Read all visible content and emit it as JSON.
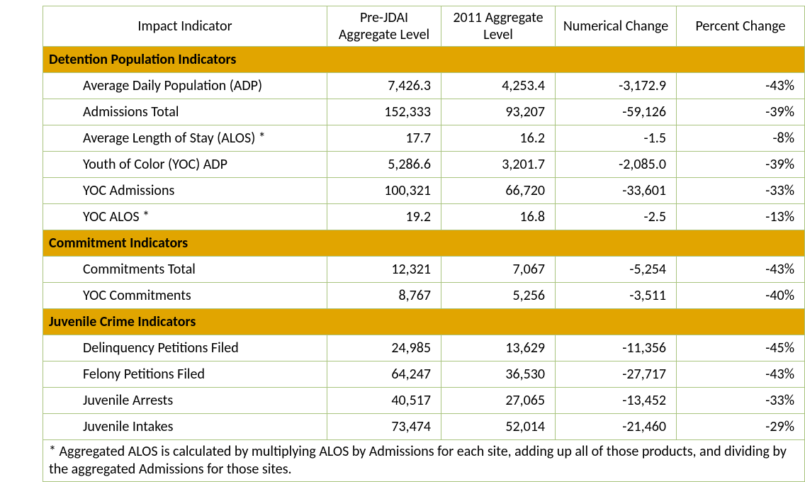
{
  "columns": {
    "impact": "Impact Indicator",
    "pre": "Pre-JDAI Aggregate Level",
    "y2011": "2011 Aggregate Level",
    "numchg": "Numerical Change",
    "pctchg": "Percent Change"
  },
  "sections": [
    {
      "title": "Detention Population Indicators",
      "rows": [
        {
          "label": "Average Daily Population (ADP)",
          "pre": "7,426.3",
          "y2011": "4,253.4",
          "numchg": "-3,172.9",
          "pctchg": "-43%"
        },
        {
          "label": "Admissions Total",
          "pre": "152,333",
          "y2011": "93,207",
          "numchg": "-59,126",
          "pctchg": "-39%"
        },
        {
          "label": "Average Length of Stay (ALOS) *",
          "pre": "17.7",
          "y2011": "16.2",
          "numchg": "-1.5",
          "pctchg": "-8%"
        },
        {
          "label": "Youth of Color (YOC) ADP",
          "pre": "5,286.6",
          "y2011": "3,201.7",
          "numchg": "-2,085.0",
          "pctchg": "-39%"
        },
        {
          "label": "YOC Admissions",
          "pre": "100,321",
          "y2011": "66,720",
          "numchg": "-33,601",
          "pctchg": "-33%"
        },
        {
          "label": "YOC ALOS *",
          "pre": "19.2",
          "y2011": "16.8",
          "numchg": "-2.5",
          "pctchg": "-13%"
        }
      ]
    },
    {
      "title": "Commitment Indicators",
      "rows": [
        {
          "label": "Commitments Total",
          "pre": "12,321",
          "y2011": "7,067",
          "numchg": "-5,254",
          "pctchg": "-43%"
        },
        {
          "label": "YOC Commitments",
          "pre": "8,767",
          "y2011": "5,256",
          "numchg": "-3,511",
          "pctchg": "-40%"
        }
      ]
    },
    {
      "title": "Juvenile Crime Indicators",
      "rows": [
        {
          "label": "Delinquency Petitions Filed",
          "pre": "24,985",
          "y2011": "13,629",
          "numchg": "-11,356",
          "pctchg": "-45%"
        },
        {
          "label": "Felony Petitions Filed",
          "pre": "64,247",
          "y2011": "36,530",
          "numchg": "-27,717",
          "pctchg": "-43%"
        },
        {
          "label": "Juvenile Arrests",
          "pre": "40,517",
          "y2011": "27,065",
          "numchg": "-13,452",
          "pctchg": "-33%"
        },
        {
          "label": "Juvenile Intakes",
          "pre": "73,474",
          "y2011": "52,014",
          "numchg": "-21,460",
          "pctchg": "-29%"
        }
      ]
    }
  ],
  "footnote": "* Aggregated ALOS is calculated by multiplying ALOS by Admissions for each site, adding up all of those products, and dividing by the aggregated Admissions for those sites.",
  "colors": {
    "section_bg": "#e1a500",
    "border": "#a9c47f"
  }
}
